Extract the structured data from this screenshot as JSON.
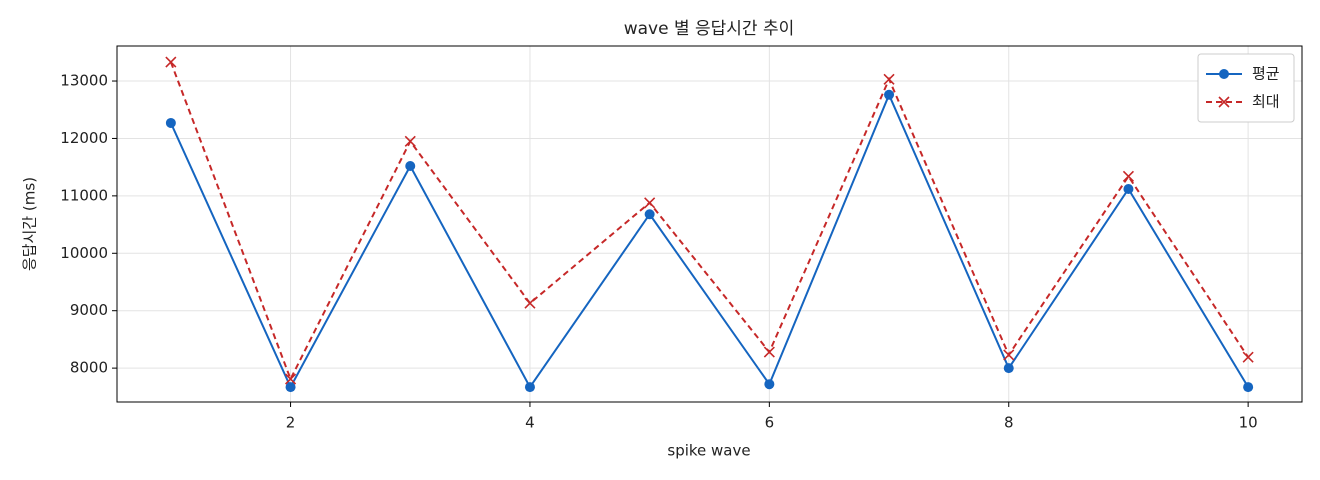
{
  "chart_data": {
    "type": "line",
    "title": "wave 별 응답시간 추이",
    "x_label": "spike wave",
    "y_label": "응답시간 (ms)",
    "x": [
      1,
      2,
      3,
      4,
      5,
      6,
      7,
      8,
      9,
      10
    ],
    "series": [
      {
        "name": "평균",
        "color": "#1565c0",
        "marker": "o",
        "linestyle": "solid",
        "values": [
          12270,
          7670,
          11520,
          7670,
          10680,
          7720,
          12760,
          8000,
          11120,
          7670
        ]
      },
      {
        "name": "최대",
        "color": "#c62828",
        "marker": "x",
        "linestyle": "dashed",
        "values": [
          13330,
          7810,
          11950,
          9130,
          10880,
          8280,
          13030,
          8230,
          11340,
          8190
        ]
      }
    ],
    "xlim": [
      0.55,
      10.45
    ],
    "xticks": [
      2,
      4,
      6,
      8,
      10
    ],
    "ylim": [
      7410,
      13610
    ],
    "yticks": [
      8000,
      9000,
      10000,
      11000,
      12000,
      13000
    ],
    "grid": true,
    "legend": "upper right"
  }
}
